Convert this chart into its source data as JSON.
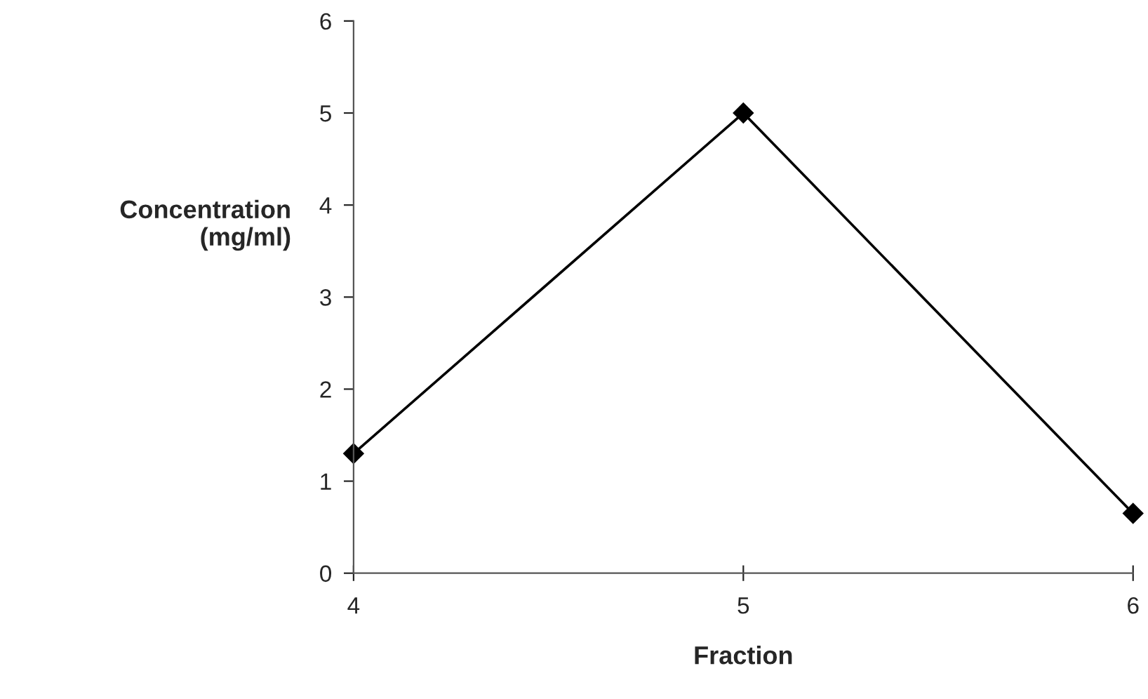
{
  "chart_data": {
    "type": "line",
    "xlabel": "Fraction",
    "ylabel": "Concentration\n(mg/ml)",
    "x": [
      4,
      5,
      6
    ],
    "series": [
      {
        "color": "#000000",
        "values": [
          1.3,
          5,
          0.65
        ]
      }
    ],
    "xlim": [
      4,
      6
    ],
    "xticks": [
      4,
      5,
      6
    ],
    "ylim": [
      0,
      6
    ],
    "yticks": [
      0,
      1,
      2,
      3,
      4,
      5,
      6
    ],
    "grid": false,
    "legend": false,
    "marker": "diamond",
    "line_style": "solid"
  }
}
